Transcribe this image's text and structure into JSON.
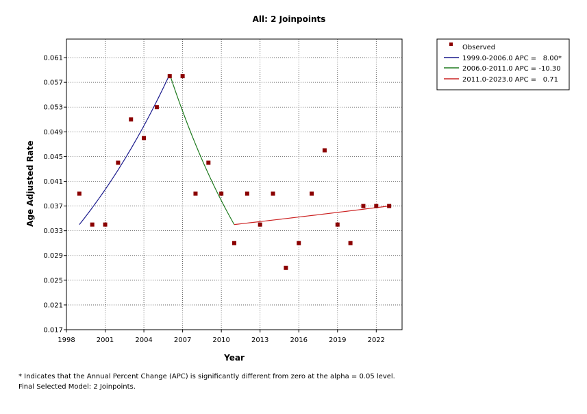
{
  "chart_data": {
    "type": "scatter",
    "title": "All: 2 Joinpoints",
    "xlabel": "Year",
    "ylabel": "Age Adjusted Rate",
    "xlim": [
      1998,
      2024
    ],
    "ylim": [
      0.017,
      0.064
    ],
    "xticks": [
      "1998",
      "2001",
      "2004",
      "2007",
      "2010",
      "2013",
      "2016",
      "2019",
      "2022"
    ],
    "yticks": [
      "0.017",
      "0.021",
      "0.025",
      "0.029",
      "0.033",
      "0.037",
      "0.041",
      "0.045",
      "0.049",
      "0.053",
      "0.057",
      "0.061"
    ],
    "grid": true,
    "legend_position": "right",
    "observed": {
      "name": "Observed",
      "color": "#8b0000",
      "x": [
        1999,
        2000,
        2001,
        2002,
        2003,
        2004,
        2005,
        2006,
        2007,
        2008,
        2009,
        2010,
        2011,
        2012,
        2013,
        2014,
        2015,
        2016,
        2017,
        2018,
        2019,
        2020,
        2021,
        2022,
        2023
      ],
      "y": [
        0.039,
        0.034,
        0.034,
        0.044,
        0.051,
        0.048,
        0.053,
        0.058,
        0.058,
        0.039,
        0.044,
        0.039,
        0.031,
        0.039,
        0.034,
        0.039,
        0.027,
        0.031,
        0.039,
        0.046,
        0.034,
        0.031,
        0.037,
        0.037,
        0.037
      ]
    },
    "segments": [
      {
        "name": "1999.0-2006.0 APC =   8.00*",
        "color": "#1a1a8c",
        "x0": 1999,
        "y0": 0.034,
        "x1": 2006,
        "y1": 0.0583,
        "apc": 8.0
      },
      {
        "name": "2006.0-2011.0 APC = -10.30",
        "color": "#1e7a1e",
        "x0": 2006,
        "y0": 0.0583,
        "x1": 2011,
        "y1": 0.034,
        "apc": -10.3
      },
      {
        "name": "2011.0-2023.0 APC =   0.71",
        "color": "#cc2222",
        "x0": 2011,
        "y0": 0.034,
        "x1": 2023,
        "y1": 0.037,
        "apc": 0.71
      }
    ]
  },
  "footnotes": {
    "line1": "* Indicates that the Annual Percent Change (APC) is significantly different from zero at the alpha = 0.05 level.",
    "line2": "Final Selected Model: 2 Joinpoints."
  }
}
